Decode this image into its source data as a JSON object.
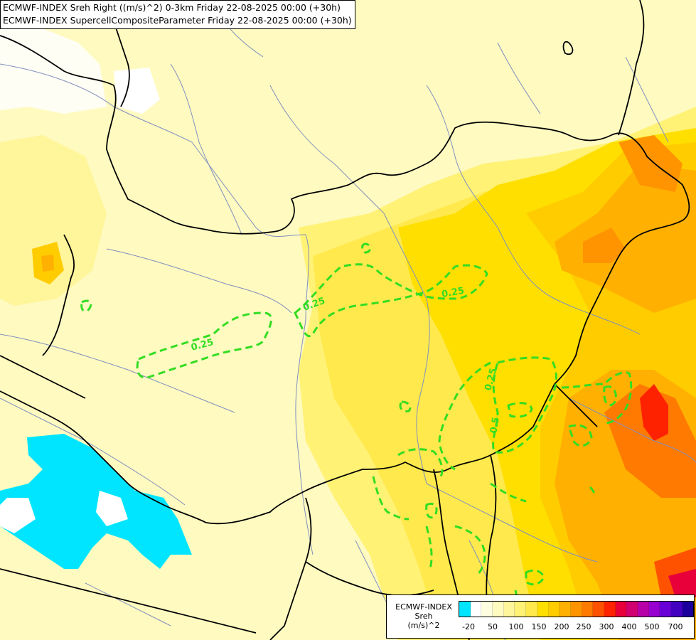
{
  "title": {
    "line1": "ECMWF-INDEX Sreh Right ((m/s)^2) 0-3km Friday 22-08-2025 00:00 (+30h)",
    "line2": "ECMWF-INDEX SupercellCompositeParameter Friday 22-08-2025 00:00 (+30h)"
  },
  "legend": {
    "line1": "ECMWF-INDEX",
    "line2": "Sreh",
    "line3": "(m/s)^2",
    "swatch_colors": [
      "#00e5ff",
      "#ffffff",
      "#fffde0",
      "#fffac0",
      "#fff59a",
      "#fff275",
      "#ffe94d",
      "#ffdf00",
      "#ffcc00",
      "#ffb000",
      "#ff9400",
      "#ff7a00",
      "#ff5200",
      "#ff2200",
      "#e8003a",
      "#d00070",
      "#b800a8",
      "#9800d0",
      "#6a00d8",
      "#4400c0",
      "#1c009c"
    ],
    "ticks": [
      "-20",
      "50",
      "100",
      "150",
      "200",
      "250",
      "300",
      "400",
      "500",
      "700"
    ]
  },
  "contours": {
    "label_025": "0.25",
    "label_05": "0.5"
  },
  "colors": {
    "contour": "#33dd22",
    "border": "#000000",
    "river": "#7f8fbf"
  }
}
